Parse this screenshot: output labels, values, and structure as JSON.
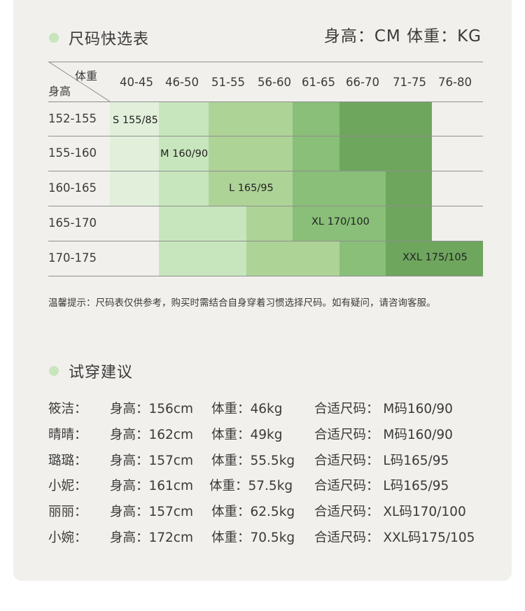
{
  "size_table": {
    "title": "尺码快选表",
    "unit": "身高：CM  体重：KG",
    "header_weight": "体重",
    "header_height": "身高",
    "weight_ranges": [
      "40-45",
      "46-50",
      "51-55",
      "56-60",
      "61-65",
      "66-70",
      "71-75",
      "76-80"
    ],
    "height_ranges": [
      "152-155",
      "155-160",
      "160-165",
      "165-170",
      "170-175"
    ],
    "sizes": [
      {
        "label": "S 155/85",
        "color": "#e2f0db"
      },
      {
        "label": "M 160/90",
        "color": "#c8e6bd"
      },
      {
        "label": "L 165/95",
        "color": "#aed397"
      },
      {
        "label": "XL 170/100",
        "color": "#89bf78"
      },
      {
        "label": "XXL 175/105",
        "color": "#6ea65e"
      }
    ],
    "tip": "温馨提示：尺码表仅供参考，购买时需结合自身穿着习惯选择尺码。如有疑问，请咨询客服。"
  },
  "suggestions": {
    "title": "试穿建议",
    "rows": [
      {
        "name": "筱洁：",
        "height": "身高：156cm",
        "weight": "体重：46kg",
        "size": "合适尺码： M码160/90"
      },
      {
        "name": "晴晴：",
        "height": "身高：162cm",
        "weight": "体重：49kg",
        "size": "合适尺码： M码160/90"
      },
      {
        "name": "璐璐：",
        "height": "身高：157cm",
        "weight": "体重：55.5kg",
        "size": "合适尺码： L码165/95"
      },
      {
        "name": "小妮：",
        "height": "身高：161cm",
        "weight": "体重：57.5kg",
        "size": "合适尺码： L码165/95"
      },
      {
        "name": "丽丽：",
        "height": "身高：157cm",
        "weight": "体重：62.5kg",
        "size": "合适尺码： XL码170/100"
      },
      {
        "name": "小婉：",
        "height": "身高：172cm",
        "weight": "体重：70.5kg",
        "size": "合适尺码： XXL码175/105"
      }
    ]
  }
}
